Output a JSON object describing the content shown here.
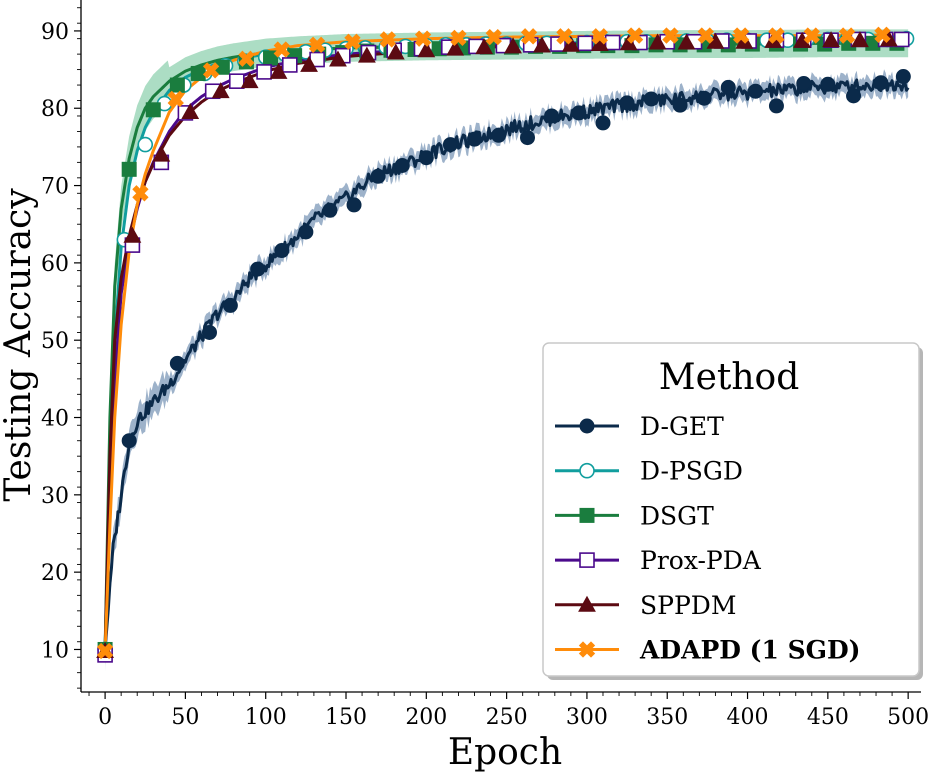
{
  "chart_data": {
    "type": "line",
    "xlabel": "Epoch",
    "ylabel": "Testing Accuracy",
    "xlim": [
      -15,
      508
    ],
    "ylim": [
      4.5,
      94
    ],
    "xticks": [
      0,
      50,
      100,
      150,
      200,
      250,
      300,
      350,
      400,
      450,
      500
    ],
    "yticks": [
      10,
      20,
      30,
      40,
      50,
      60,
      70,
      80,
      90
    ],
    "grid": false,
    "legend": {
      "title": "Method",
      "placement": "lower-right"
    },
    "series": [
      {
        "name": "D-GET",
        "color": "#0b2a4a",
        "marker": "circle",
        "filled": true,
        "bold": false,
        "band": {
          "color": "#5b7fa6",
          "width": 1.2
        },
        "x": [
          0,
          5,
          10,
          15,
          20,
          25,
          30,
          40,
          50,
          60,
          70,
          80,
          90,
          100,
          110,
          120,
          130,
          140,
          150,
          160,
          170,
          180,
          190,
          200,
          210,
          220,
          230,
          240,
          250,
          260,
          270,
          280,
          290,
          300,
          310,
          320,
          330,
          340,
          350,
          360,
          370,
          380,
          390,
          400,
          410,
          420,
          430,
          440,
          450,
          460,
          470,
          480,
          490,
          500
        ],
        "values": [
          10,
          23,
          30,
          37,
          39.5,
          40.8,
          42,
          44.3,
          47.5,
          50.5,
          53.5,
          55.3,
          58,
          59.8,
          61.5,
          63.5,
          65.5,
          67,
          68.3,
          70,
          71.5,
          72.2,
          73,
          74,
          74.8,
          75.5,
          76,
          76.7,
          77.3,
          77.8,
          78.3,
          78.8,
          79.2,
          79.6,
          80,
          80.3,
          80.6,
          80.9,
          81.1,
          81.3,
          81.5,
          81.7,
          81.9,
          82,
          82.2,
          82.3,
          82.5,
          82.6,
          82.7,
          82.8,
          82.9,
          83,
          83.1,
          83.2
        ],
        "markers_x": [
          0,
          15,
          45,
          65,
          78,
          95,
          110,
          125,
          140,
          155,
          170,
          185,
          200,
          215,
          230,
          245,
          263,
          278,
          295,
          310,
          325,
          340,
          358,
          373,
          388,
          405,
          418,
          435,
          450,
          466,
          483,
          497
        ],
        "markers_y": [
          10,
          37,
          47,
          51,
          54.5,
          59.2,
          61.6,
          64,
          66.8,
          67.5,
          71.2,
          72.6,
          73.6,
          75.3,
          76,
          76.5,
          76.2,
          79,
          79.4,
          78.1,
          80.7,
          81.2,
          80.4,
          81.3,
          82.7,
          82.2,
          80.3,
          83.2,
          83.1,
          81.6,
          83.3,
          84.1
        ]
      },
      {
        "name": "D-PSGD",
        "color": "#119e9e",
        "marker": "circle",
        "filled": false,
        "bold": false,
        "x": [
          0,
          3,
          6,
          10,
          15,
          20,
          25,
          30,
          40,
          50,
          60,
          70,
          80,
          100,
          120,
          150,
          200,
          250,
          300,
          350,
          400,
          450,
          500
        ],
        "values": [
          10,
          35,
          50,
          62,
          70,
          74.5,
          77.5,
          79.5,
          82.3,
          84,
          85,
          85.8,
          86.3,
          87,
          87.4,
          87.8,
          88.1,
          88.3,
          88.5,
          88.6,
          88.7,
          88.8,
          88.9
        ],
        "markers_x": [
          0,
          12,
          25,
          37,
          49,
          62,
          75,
          87,
          100,
          112,
          125,
          137,
          150,
          162,
          175,
          187,
          200,
          212,
          225,
          237,
          250,
          262,
          275,
          287,
          300,
          312,
          325,
          337,
          350,
          362,
          375,
          387,
          400,
          412,
          425,
          437,
          450,
          462,
          475,
          487,
          499
        ],
        "markers_y": [
          10,
          63,
          75.3,
          80.6,
          83,
          84.5,
          85.5,
          86.1,
          86.6,
          87,
          87.3,
          87.5,
          87.7,
          87.8,
          87.9,
          88,
          88.1,
          88.2,
          88.2,
          88.3,
          88.3,
          88.4,
          88.4,
          88.5,
          88.5,
          88.6,
          88.6,
          88.6,
          88.7,
          88.7,
          88.7,
          88.8,
          88.8,
          88.8,
          88.8,
          88.9,
          88.9,
          88.9,
          88.9,
          88.9,
          89
        ]
      },
      {
        "name": "DSGT",
        "color": "#1a7d3e",
        "marker": "square",
        "filled": true,
        "bold": false,
        "band": {
          "color": "#74c69d",
          "width": 1.8
        },
        "x": [
          0,
          3,
          6,
          10,
          15,
          20,
          25,
          30,
          40,
          50,
          60,
          70,
          80,
          100,
          120,
          150,
          200,
          250,
          300,
          350,
          400,
          450,
          500
        ],
        "values": [
          10,
          40,
          57,
          67,
          73.5,
          77.5,
          80,
          81.5,
          83.5,
          84.8,
          85.6,
          86.2,
          86.6,
          87.2,
          87.5,
          87.8,
          88,
          88.1,
          88.2,
          88.3,
          88.3,
          88.4,
          88.4
        ],
        "markers_x": [
          0,
          15,
          30,
          45,
          58,
          73,
          88,
          103,
          118,
          133,
          148,
          163,
          178,
          193,
          208,
          223,
          238,
          253,
          268,
          283,
          298,
          313,
          328,
          343,
          358,
          373,
          388,
          403,
          418,
          433,
          448,
          463,
          478,
          493
        ],
        "markers_y": [
          10,
          72.1,
          79.8,
          83,
          84.5,
          85.3,
          86,
          86.5,
          86.8,
          87,
          87.2,
          87.4,
          87.5,
          87.6,
          87.7,
          87.8,
          87.9,
          87.9,
          88,
          88,
          88.1,
          88.1,
          88.1,
          88.2,
          88.2,
          88.2,
          88.2,
          88.3,
          88.3,
          88.3,
          88.3,
          88.4,
          88.4,
          88.4
        ]
      },
      {
        "name": "Prox-PDA",
        "color": "#4b0a8c",
        "marker": "square",
        "filled": false,
        "bold": false,
        "x": [
          0,
          3,
          6,
          10,
          15,
          20,
          25,
          30,
          40,
          50,
          60,
          70,
          80,
          100,
          120,
          150,
          200,
          250,
          300,
          350,
          400,
          450,
          500
        ],
        "values": [
          9.3,
          30,
          45,
          56,
          62.5,
          67,
          70.5,
          73,
          77,
          79.8,
          81.5,
          82.8,
          83.8,
          85.3,
          86.2,
          87,
          87.7,
          88.1,
          88.4,
          88.6,
          88.7,
          88.8,
          88.9
        ],
        "markers_x": [
          0,
          17,
          35,
          50,
          67,
          82,
          99,
          115,
          132,
          148,
          164,
          180,
          197,
          214,
          231,
          248,
          265,
          282,
          299,
          316,
          333,
          350,
          367,
          384,
          401,
          418,
          435,
          452,
          469,
          486,
          496
        ],
        "markers_y": [
          9.3,
          62.3,
          73,
          79.4,
          82.2,
          83.5,
          84.7,
          85.6,
          86.3,
          86.8,
          87.2,
          87.5,
          87.7,
          87.9,
          88,
          88.1,
          88.2,
          88.3,
          88.4,
          88.5,
          88.5,
          88.6,
          88.6,
          88.7,
          88.7,
          88.8,
          88.8,
          88.8,
          88.9,
          88.9,
          88.9
        ]
      },
      {
        "name": "SPPDM",
        "color": "#5c0a12",
        "marker": "triangle",
        "filled": true,
        "bold": false,
        "x": [
          0,
          3,
          6,
          10,
          15,
          20,
          25,
          30,
          40,
          50,
          60,
          70,
          80,
          100,
          120,
          150,
          200,
          250,
          300,
          350,
          400,
          450,
          500
        ],
        "values": [
          9.8,
          35,
          50,
          58,
          63.5,
          67.5,
          70.5,
          72.8,
          76.5,
          79,
          80.8,
          82.2,
          83.2,
          84.8,
          85.8,
          86.7,
          87.5,
          88,
          88.3,
          88.5,
          88.7,
          88.8,
          88.9
        ],
        "markers_x": [
          0,
          17,
          35,
          53,
          72,
          90,
          108,
          127,
          145,
          163,
          181,
          200,
          218,
          236,
          254,
          272,
          290,
          308,
          326,
          344,
          362,
          380,
          398,
          416,
          434,
          452,
          470,
          488
        ],
        "markers_y": [
          9.8,
          63.5,
          74,
          79.5,
          82.2,
          83.5,
          84.7,
          85.6,
          86.3,
          86.8,
          87.2,
          87.5,
          87.7,
          87.9,
          88,
          88.1,
          88.2,
          88.3,
          88.4,
          88.5,
          88.5,
          88.6,
          88.6,
          88.7,
          88.7,
          88.8,
          88.8,
          88.9
        ]
      },
      {
        "name": "ADAPD (1 SGD)",
        "color": "#ff8c0a",
        "marker": "x",
        "filled": true,
        "bold": true,
        "x": [
          0,
          3,
          6,
          10,
          15,
          20,
          25,
          30,
          40,
          50,
          60,
          70,
          80,
          100,
          120,
          150,
          200,
          250,
          300,
          350,
          400,
          450,
          500
        ],
        "values": [
          9.8,
          26,
          40,
          52,
          61.5,
          67.5,
          71.5,
          74.5,
          79.5,
          82.3,
          84,
          85.2,
          86.2,
          87.4,
          88.1,
          88.6,
          89,
          89.2,
          89.3,
          89.4,
          89.4,
          89.4,
          89.5
        ],
        "markers_x": [
          0,
          22,
          44,
          66,
          88,
          110,
          132,
          154,
          176,
          198,
          220,
          242,
          264,
          286,
          308,
          330,
          352,
          374,
          396,
          418,
          440,
          462,
          484
        ],
        "markers_y": [
          9.8,
          69,
          81.2,
          84.9,
          86.4,
          87.6,
          88.2,
          88.6,
          88.9,
          89,
          89.1,
          89.2,
          89.3,
          89.3,
          89.3,
          89.4,
          89.4,
          89.4,
          89.4,
          89.4,
          89.4,
          89.4,
          89.5
        ]
      }
    ]
  }
}
